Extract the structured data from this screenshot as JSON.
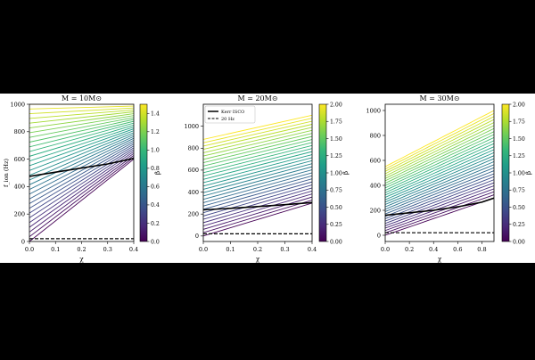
{
  "figure": {
    "background": "#000000",
    "panel_background": "#ffffff"
  },
  "chart_data": [
    {
      "type": "line",
      "title": "M = 10M⊙",
      "xlabel": "χ",
      "ylabel": "f_ion (Hz)",
      "xlim": [
        0,
        0.4
      ],
      "ylim": [
        0,
        1000
      ],
      "xticks": [
        "0.0",
        "0.1",
        "0.2",
        "0.3",
        "0.4"
      ],
      "yticks": [
        "0",
        "200",
        "400",
        "600",
        "800",
        "1000"
      ],
      "colorbar": {
        "label": "β",
        "range": [
          0,
          1.5
        ],
        "ticks": [
          "0.0",
          "0.2",
          "0.4",
          "0.6",
          "0.8",
          "1.0",
          "1.2",
          "1.4"
        ]
      },
      "family": {
        "count": 30,
        "y_at_x0": [
          0,
          1000
        ],
        "y_at_xmax": [
          600,
          1000
        ],
        "lower_edge": "diagonal from (0,0) to (0.4,600)"
      },
      "series": [
        {
          "x": [
            0,
            0.1,
            0.2,
            0.3,
            0.4
          ],
          "y": [
            475,
            505,
            535,
            565,
            605
          ],
          "style": "solid",
          "color": "#000000"
        },
        {
          "x": [
            0,
            0.4
          ],
          "y": [
            20,
            20
          ],
          "style": "dashed",
          "color": "#000000"
        }
      ]
    },
    {
      "type": "line",
      "title": "M = 20M⊙",
      "xlabel": "χ",
      "ylabel": "",
      "xlim": [
        0,
        0.4
      ],
      "ylim": [
        -50,
        1200
      ],
      "xticks": [
        "0.0",
        "0.1",
        "0.2",
        "0.3",
        "0.4"
      ],
      "yticks": [
        "0",
        "200",
        "400",
        "600",
        "800",
        "1000"
      ],
      "colorbar": {
        "label": "β",
        "range": [
          0,
          2.0
        ],
        "ticks": [
          "0.00",
          "0.25",
          "0.50",
          "0.75",
          "1.00",
          "1.25",
          "1.50",
          "1.75",
          "2.00"
        ]
      },
      "legend": {
        "position": "top-left",
        "entries": [
          "Kerr ISCO",
          "20 Hz"
        ]
      },
      "family": {
        "count": 30,
        "y_at_x0": [
          0,
          880
        ],
        "y_at_xmax": [
          300,
          1100
        ],
        "lower_edge": "diagonal from (0,0) to (0.4,300)"
      },
      "series": [
        {
          "name": "Kerr ISCO",
          "x": [
            0,
            0.1,
            0.2,
            0.3,
            0.4
          ],
          "y": [
            238,
            252,
            268,
            285,
            305
          ],
          "style": "solid",
          "color": "#000000"
        },
        {
          "name": "20 Hz",
          "x": [
            0,
            0.4
          ],
          "y": [
            20,
            20
          ],
          "style": "dashed",
          "color": "#000000"
        }
      ]
    },
    {
      "type": "line",
      "title": "M = 30M⊙",
      "xlabel": "χ",
      "ylabel": "",
      "xlim": [
        0,
        0.9
      ],
      "ylim": [
        -50,
        1050
      ],
      "xticks": [
        "0.0",
        "0.2",
        "0.4",
        "0.6",
        "0.8"
      ],
      "yticks": [
        "0",
        "200",
        "400",
        "600",
        "800",
        "1000"
      ],
      "colorbar": {
        "label": "β",
        "range": [
          0,
          2.0
        ],
        "ticks": [
          "0.00",
          "0.25",
          "0.50",
          "0.75",
          "1.00",
          "1.25",
          "1.50",
          "1.75",
          "2.00"
        ]
      },
      "family": {
        "count": 30,
        "y_at_x0": [
          0,
          550
        ],
        "y_at_xmax": [
          300,
          1000
        ],
        "lower_edge": "curve from (0,0) to (0.9,300)"
      },
      "series": [
        {
          "x": [
            0,
            0.2,
            0.4,
            0.6,
            0.8,
            0.9
          ],
          "y": [
            160,
            180,
            200,
            228,
            265,
            298
          ],
          "style": "solid",
          "color": "#000000"
        },
        {
          "x": [
            0,
            0.9
          ],
          "y": [
            20,
            20
          ],
          "style": "dashed",
          "color": "#000000"
        }
      ]
    }
  ]
}
